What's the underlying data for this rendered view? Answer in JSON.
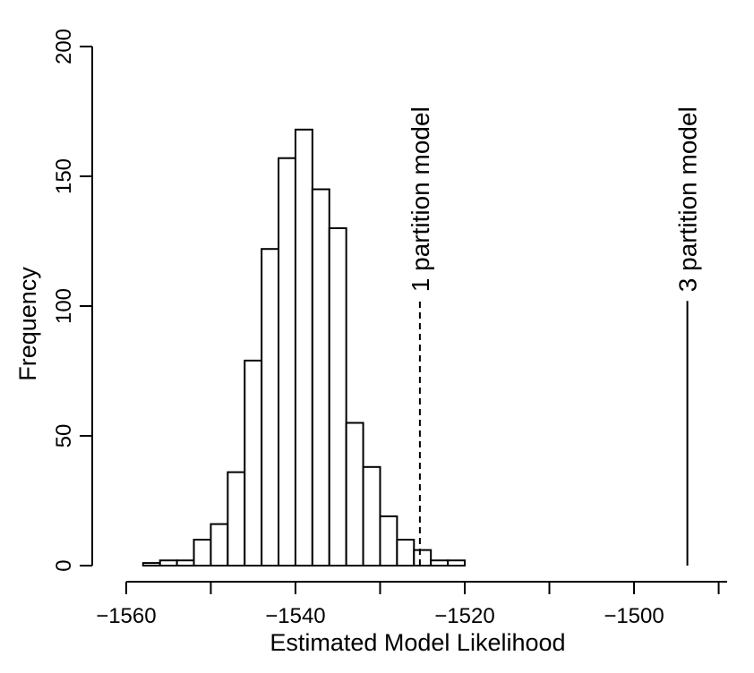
{
  "chart_data": {
    "type": "bar",
    "subtype": "histogram",
    "xlabel": "Estimated Model Likelihood",
    "ylabel": "Frequency",
    "xlim": [
      -1562,
      -1489
    ],
    "ylim": [
      0,
      200
    ],
    "x_ticks": [
      -1560,
      -1540,
      -1520,
      -1500
    ],
    "x_tick_labels": [
      "−1560",
      "−1540",
      "−1520",
      "−1500"
    ],
    "y_ticks": [
      0,
      50,
      100,
      150,
      200
    ],
    "y_tick_labels": [
      "0",
      "50",
      "100",
      "150",
      "200"
    ],
    "bin_width": 2,
    "bins": [
      {
        "start": -1558,
        "end": -1556,
        "count": 1
      },
      {
        "start": -1556,
        "end": -1554,
        "count": 2
      },
      {
        "start": -1554,
        "end": -1552,
        "count": 2
      },
      {
        "start": -1552,
        "end": -1550,
        "count": 10
      },
      {
        "start": -1550,
        "end": -1548,
        "count": 16
      },
      {
        "start": -1548,
        "end": -1546,
        "count": 36
      },
      {
        "start": -1546,
        "end": -1544,
        "count": 79
      },
      {
        "start": -1544,
        "end": -1542,
        "count": 122
      },
      {
        "start": -1542,
        "end": -1540,
        "count": 157
      },
      {
        "start": -1540,
        "end": -1538,
        "count": 168
      },
      {
        "start": -1538,
        "end": -1536,
        "count": 145
      },
      {
        "start": -1536,
        "end": -1534,
        "count": 130
      },
      {
        "start": -1534,
        "end": -1532,
        "count": 55
      },
      {
        "start": -1532,
        "end": -1530,
        "count": 38
      },
      {
        "start": -1530,
        "end": -1528,
        "count": 19
      },
      {
        "start": -1528,
        "end": -1526,
        "count": 10
      },
      {
        "start": -1526,
        "end": -1524,
        "count": 6
      },
      {
        "start": -1524,
        "end": -1522,
        "count": 2
      },
      {
        "start": -1522,
        "end": -1520,
        "count": 2
      }
    ],
    "annotations": [
      {
        "label": "1 partition model",
        "x": -1525.3,
        "y_top": 102,
        "line_style": "dashed"
      },
      {
        "label": "3 partition model",
        "x": -1493.7,
        "y_top": 102,
        "line_style": "solid"
      }
    ],
    "grid": false,
    "legend": "none"
  }
}
